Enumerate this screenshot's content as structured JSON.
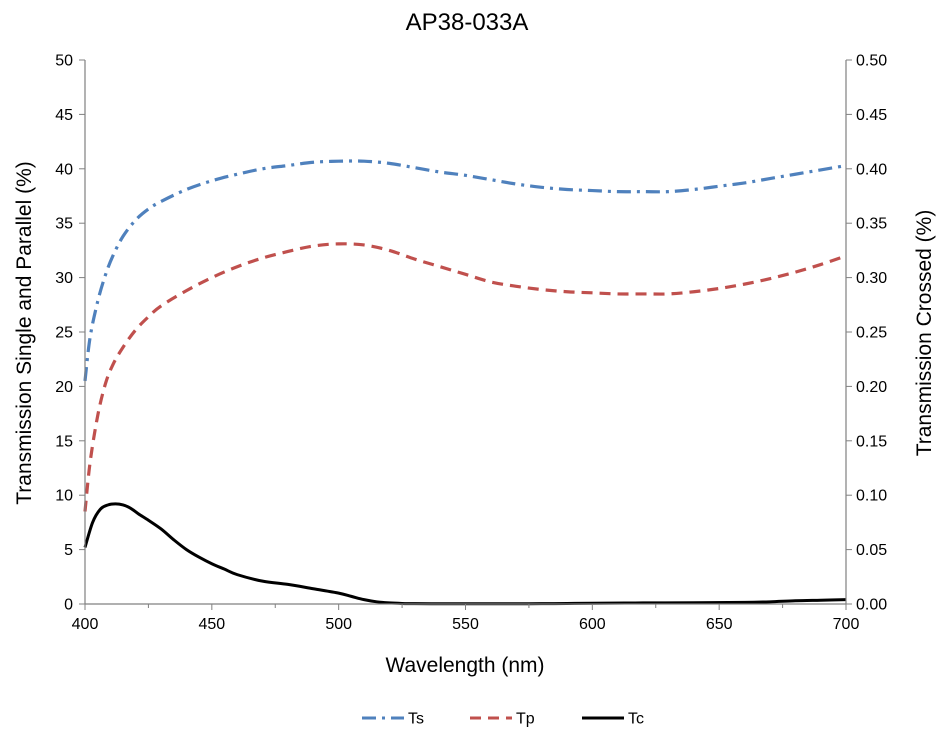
{
  "chart_data": {
    "type": "line",
    "title": "AP38-033A",
    "xlabel": "Wavelength (nm)",
    "ylabel": "Transmission Single and Parallel (%)",
    "y2label": "Transmission Crossed (%)",
    "xlim": [
      400,
      700
    ],
    "ylim": [
      0,
      50
    ],
    "y2lim": [
      0,
      0.5
    ],
    "x_ticks": [
      "400",
      "450",
      "500",
      "550",
      "600",
      "650",
      "700"
    ],
    "y_ticks": [
      "0",
      "5",
      "10",
      "15",
      "20",
      "25",
      "30",
      "35",
      "40",
      "45",
      "50"
    ],
    "y2_ticks": [
      "0.00",
      "0.05",
      "0.10",
      "0.15",
      "0.20",
      "0.25",
      "0.30",
      "0.35",
      "0.40",
      "0.45",
      "0.50"
    ],
    "grid": false,
    "legend_position": "bottom",
    "series": [
      {
        "name": "Ts",
        "axis": "left",
        "color": "#4F81BD",
        "style": "dash-dot",
        "x": [
          400,
          402,
          405,
          408,
          411,
          415,
          420,
          425,
          430,
          440,
          450,
          460,
          470,
          480,
          490,
          500,
          510,
          520,
          530,
          540,
          550,
          560,
          570,
          580,
          590,
          600,
          610,
          620,
          630,
          640,
          650,
          660,
          670,
          680,
          690,
          700
        ],
        "values": [
          20.5,
          24.5,
          27.8,
          30.2,
          32.0,
          33.8,
          35.3,
          36.3,
          37.0,
          38.1,
          38.9,
          39.5,
          40.0,
          40.3,
          40.6,
          40.7,
          40.7,
          40.5,
          40.1,
          39.7,
          39.4,
          39.0,
          38.6,
          38.3,
          38.1,
          38.0,
          37.9,
          37.9,
          37.9,
          38.1,
          38.4,
          38.7,
          39.1,
          39.5,
          39.9,
          40.3
        ]
      },
      {
        "name": "Tp",
        "axis": "left",
        "color": "#C0504D",
        "style": "dash",
        "x": [
          400,
          402,
          405,
          408,
          411,
          415,
          420,
          425,
          430,
          440,
          450,
          460,
          470,
          480,
          490,
          500,
          510,
          520,
          530,
          540,
          550,
          560,
          570,
          580,
          590,
          600,
          610,
          620,
          630,
          640,
          650,
          660,
          670,
          680,
          690,
          700
        ],
        "values": [
          8.5,
          13.0,
          17.3,
          20.2,
          22.0,
          23.6,
          25.2,
          26.4,
          27.4,
          28.8,
          30.0,
          31.0,
          31.8,
          32.4,
          32.9,
          33.1,
          33.0,
          32.5,
          31.7,
          31.0,
          30.3,
          29.6,
          29.2,
          28.9,
          28.7,
          28.6,
          28.5,
          28.5,
          28.5,
          28.7,
          29.0,
          29.4,
          29.9,
          30.5,
          31.2,
          32.0
        ]
      },
      {
        "name": "Tc",
        "axis": "right",
        "color": "#000000",
        "style": "solid",
        "x": [
          400,
          403,
          406,
          409,
          412,
          415,
          418,
          421,
          425,
          430,
          435,
          440,
          445,
          450,
          455,
          460,
          470,
          480,
          490,
          500,
          505,
          510,
          515,
          520,
          525,
          530,
          540,
          550,
          560,
          570,
          580,
          590,
          600,
          620,
          640,
          660,
          670,
          680,
          690,
          700
        ],
        "values": [
          0.052,
          0.075,
          0.087,
          0.091,
          0.092,
          0.091,
          0.088,
          0.083,
          0.077,
          0.069,
          0.059,
          0.05,
          0.043,
          0.037,
          0.032,
          0.027,
          0.021,
          0.018,
          0.014,
          0.01,
          0.007,
          0.004,
          0.002,
          0.001,
          0.0005,
          0.0003,
          0.0002,
          0.0002,
          0.0002,
          0.0002,
          0.0003,
          0.0005,
          0.0007,
          0.001,
          0.0012,
          0.0015,
          0.002,
          0.003,
          0.0035,
          0.004
        ]
      }
    ]
  }
}
